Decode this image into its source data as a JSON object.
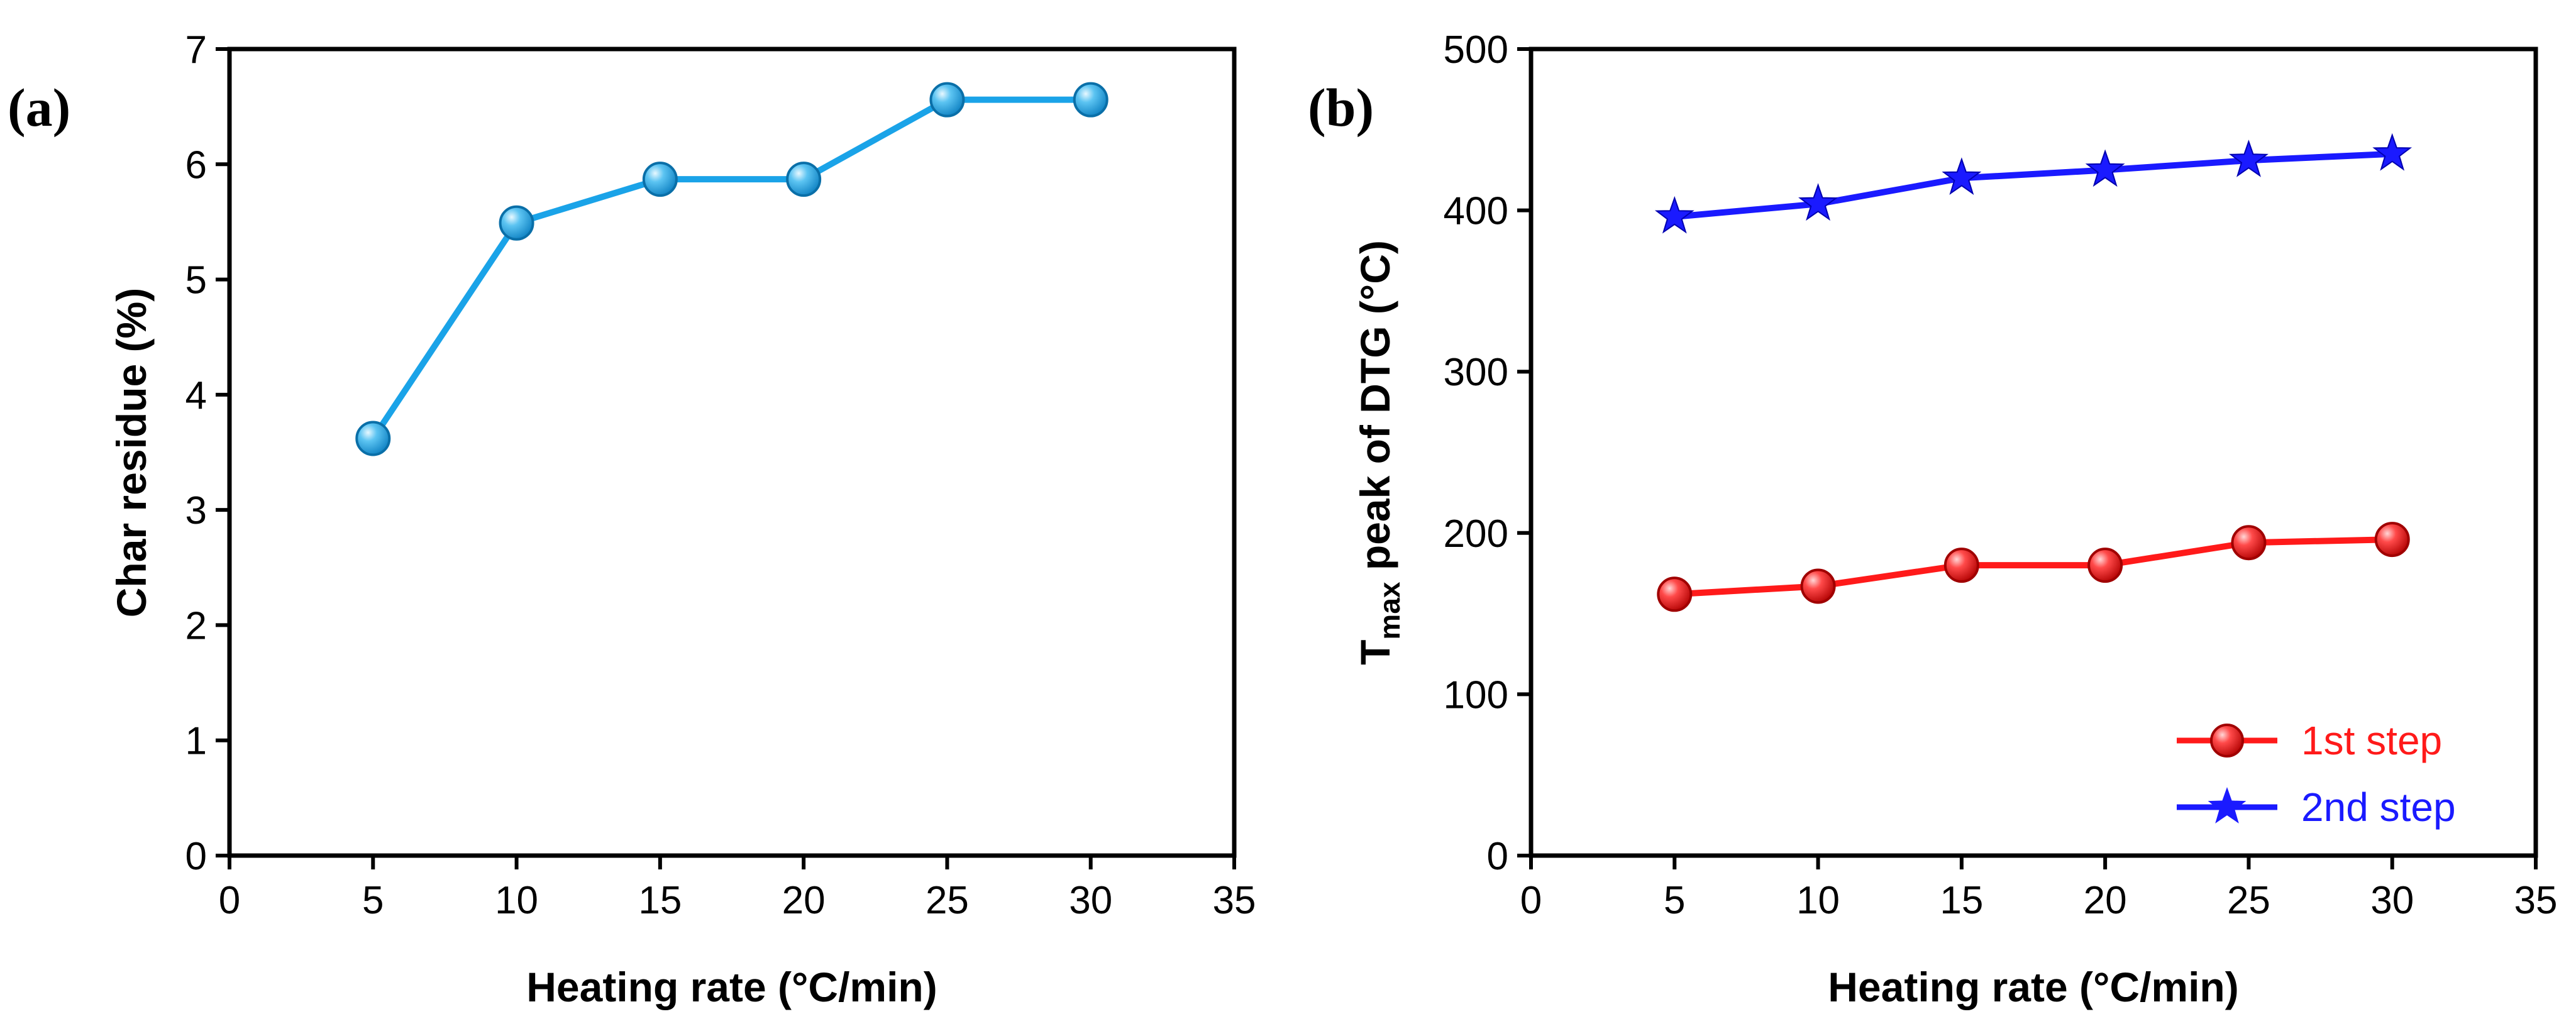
{
  "chart_data": [
    {
      "type": "line",
      "panel_label": "(a)",
      "title": "",
      "xlabel": "Heating rate (°C/min)",
      "ylabel": "Char residue (%)",
      "xlim": [
        0,
        35
      ],
      "ylim": [
        0,
        7
      ],
      "xticks": [
        "0",
        "5",
        "10",
        "15",
        "20",
        "25",
        "30",
        "35"
      ],
      "yticks": [
        "0",
        "1",
        "2",
        "3",
        "4",
        "5",
        "6",
        "7"
      ],
      "grid": false,
      "series": [
        {
          "name": "Char residue",
          "color": "#1aa3e8",
          "marker": "sphere",
          "x": [
            5,
            10,
            15,
            20,
            25,
            30
          ],
          "y": [
            3.62,
            5.49,
            5.87,
            5.87,
            6.56,
            6.56
          ]
        }
      ]
    },
    {
      "type": "line",
      "panel_label": "(b)",
      "title": "",
      "xlabel": "Heating rate (°C/min)",
      "ylabel_main": "T",
      "ylabel_sub": "max",
      "ylabel_rest": " peak of DTG (°C)",
      "xlim": [
        0,
        35
      ],
      "ylim": [
        0,
        500
      ],
      "xticks": [
        "0",
        "5",
        "10",
        "15",
        "20",
        "25",
        "30",
        "35"
      ],
      "yticks": [
        "0",
        "100",
        "200",
        "300",
        "400",
        "500"
      ],
      "grid": false,
      "legend_position": "bottom-right",
      "series": [
        {
          "name": "1st step",
          "color": "#ff1a1a",
          "marker": "sphere",
          "x": [
            5,
            10,
            15,
            20,
            25,
            30
          ],
          "y": [
            162,
            167,
            180,
            180,
            194,
            196
          ]
        },
        {
          "name": "2nd step",
          "color": "#1a1aff",
          "marker": "star",
          "x": [
            5,
            10,
            15,
            20,
            25,
            30
          ],
          "y": [
            396,
            404,
            420,
            425,
            431,
            435
          ]
        }
      ]
    }
  ]
}
